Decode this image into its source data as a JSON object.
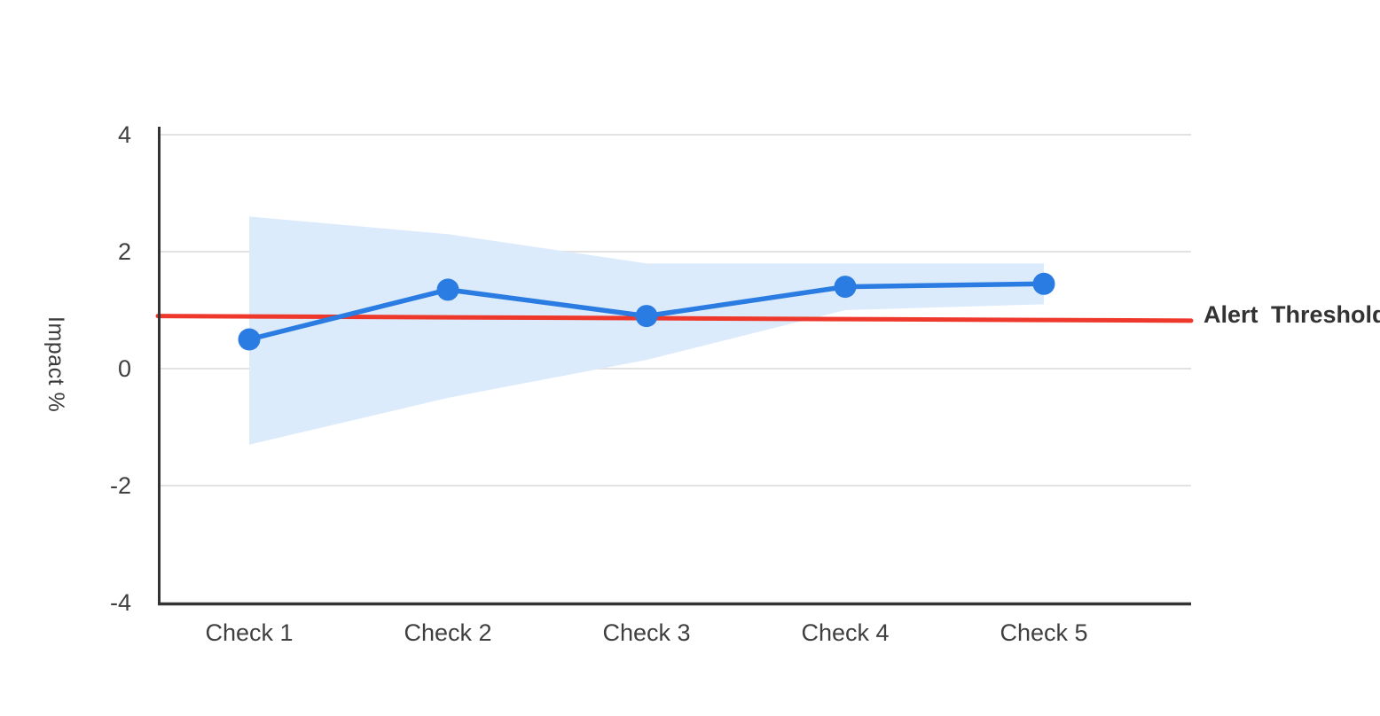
{
  "chart_data": {
    "type": "line",
    "title": "",
    "categories": [
      "Check 1",
      "Check 2",
      "Check 3",
      "Check 4",
      "Check 5"
    ],
    "series": [
      {
        "name": "Impact",
        "values": [
          0.5,
          1.35,
          0.9,
          1.4,
          1.45
        ],
        "color": "#2b7ce2",
        "marker": "circle"
      }
    ],
    "confidence_band": {
      "upper": [
        2.6,
        2.3,
        1.8,
        1.8,
        1.8
      ],
      "lower": [
        -1.3,
        -0.5,
        0.15,
        1.0,
        1.1
      ],
      "color": "#dcebfb"
    },
    "threshold": {
      "label": "Alert Threshold",
      "value_start": 0.9,
      "value_end": 0.82,
      "color": "#ee382c"
    },
    "xlabel": "",
    "ylabel": "Impact %",
    "ylim": [
      -4,
      4
    ],
    "yticks": [
      4,
      2,
      0,
      -2,
      -4
    ],
    "grid": true,
    "legend_position": "right-of-threshold-line",
    "colors": {
      "grid": "#e2e2e2",
      "axis": "#333333",
      "tick_text": "#3f3f3f"
    }
  }
}
